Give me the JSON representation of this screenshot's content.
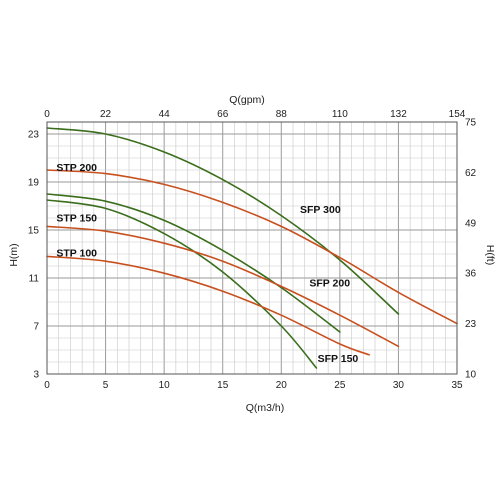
{
  "chart_data": {
    "type": "line",
    "title": "",
    "xlabel": "Q(m3/h)",
    "ylabel": "H(m)",
    "x2label": "Q(gpm)",
    "y2label": "H(ft)",
    "xlim": [
      0,
      35
    ],
    "ylim": [
      3,
      24
    ],
    "x_ticks": [
      "0",
      "5",
      "10",
      "15",
      "20",
      "25",
      "30",
      "35"
    ],
    "y_ticks": [
      "3",
      "7",
      "11",
      "15",
      "19",
      "23"
    ],
    "x2_ticks": [
      "0",
      "22",
      "44",
      "66",
      "88",
      "110",
      "132",
      "154"
    ],
    "y2_ticks": [
      "10",
      "23",
      "36",
      "49",
      "62",
      "75"
    ],
    "grid": true,
    "colors": {
      "sfp": "#3a6e1c",
      "stp": "#c8501e",
      "grid": "#c8c8c8",
      "major_grid": "#9a9a9a"
    },
    "series": [
      {
        "name": "SFP 300",
        "family": "sfp",
        "x": [
          0,
          5,
          10,
          15,
          20,
          25,
          30
        ],
        "y": [
          23.5,
          23.0,
          21.5,
          19.2,
          16.2,
          12.5,
          8.0
        ]
      },
      {
        "name": "SFP 200",
        "family": "sfp",
        "x": [
          0,
          5,
          10,
          15,
          20,
          25
        ],
        "y": [
          18.0,
          17.4,
          15.8,
          13.3,
          10.2,
          6.5
        ]
      },
      {
        "name": "SFP 150",
        "family": "sfp",
        "x": [
          0,
          5,
          10,
          15,
          20,
          23
        ],
        "y": [
          17.5,
          16.8,
          14.7,
          11.5,
          7.0,
          3.5
        ]
      },
      {
        "name": "STP 200",
        "family": "stp",
        "x": [
          0,
          5,
          10,
          15,
          20,
          25,
          30,
          35
        ],
        "y": [
          20.0,
          19.7,
          18.8,
          17.3,
          15.3,
          12.7,
          9.8,
          7.2
        ]
      },
      {
        "name": "STP 150",
        "family": "stp",
        "x": [
          0,
          5,
          10,
          15,
          20,
          25,
          30
        ],
        "y": [
          15.3,
          14.9,
          13.9,
          12.4,
          10.3,
          7.9,
          5.3
        ]
      },
      {
        "name": "STP 100",
        "family": "stp",
        "x": [
          0,
          5,
          10,
          15,
          20,
          25,
          27.5
        ],
        "y": [
          12.8,
          12.4,
          11.4,
          9.9,
          7.9,
          5.5,
          4.6
        ]
      }
    ],
    "labels": [
      {
        "text": "STP 200",
        "x": 0.8,
        "y": 19.9
      },
      {
        "text": "STP 150",
        "x": 0.8,
        "y": 15.7
      },
      {
        "text": "STP 100",
        "x": 0.8,
        "y": 12.8
      },
      {
        "text": "SFP 300",
        "x": 21.6,
        "y": 16.4
      },
      {
        "text": "SFP 200",
        "x": 22.4,
        "y": 10.3
      },
      {
        "text": "SFP 150",
        "x": 23.1,
        "y": 4.0
      }
    ]
  }
}
